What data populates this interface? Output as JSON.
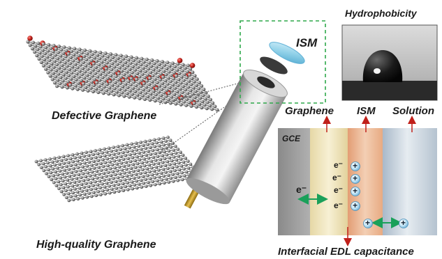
{
  "labels": {
    "defective": "Defective Graphene",
    "high_quality": "High-quality Graphene",
    "ism_top": "ISM",
    "hydrophobicity": "Hydrophobicity",
    "graphene_col": "Graphene",
    "ism_col": "ISM",
    "solution_col": "Solution",
    "gce": "GCE",
    "edl": "Interfacial EDL capacitance"
  },
  "symbols": {
    "electron": "e⁻",
    "cation": "+"
  },
  "colors": {
    "carbon": "#8c8c8c",
    "oxygen": "#c0201a",
    "green_arrow": "#1aa05a",
    "red_arrow": "#c0201a",
    "dashed_box": "#2ea84a",
    "ism_disc": "#8fd0e8",
    "gce_layer": "#9a9a9a",
    "graphene_layer": "#efe4be",
    "ism_layer": "#eab895",
    "solution_layer": "#c7d3de"
  }
}
